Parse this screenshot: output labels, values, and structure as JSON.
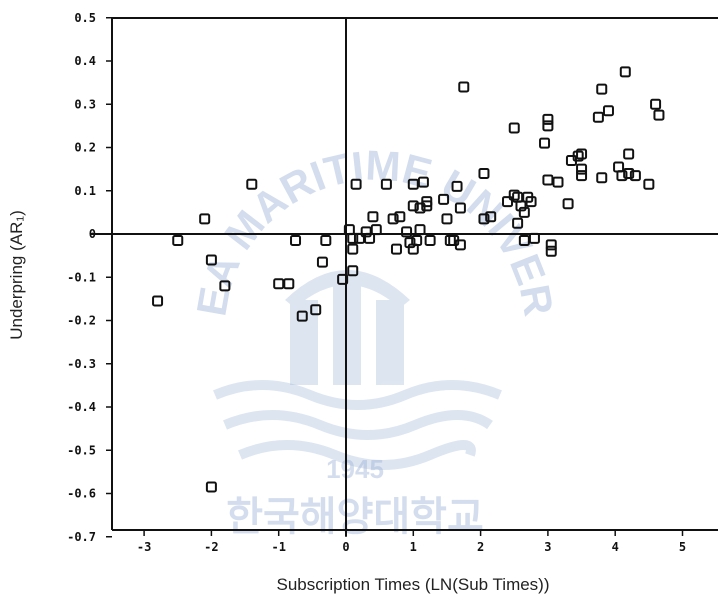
{
  "chart_data": {
    "type": "scatter",
    "xlabel": "Subscription Times (LN(Sub Times))",
    "ylabel": "Underpring (AR₁)",
    "xlim": [
      -3.5,
      5.5
    ],
    "ylim": [
      -0.7,
      0.5
    ],
    "xticks": [
      "-3",
      "-2",
      "-1",
      "0",
      "1",
      "2",
      "3",
      "4",
      "5"
    ],
    "yticks": [
      "0.5",
      "0.4",
      "0.3",
      "0.2",
      "0.1",
      "0",
      "-0.1",
      "-0.2",
      "-0.3",
      "-0.4",
      "-0.5",
      "-0.6",
      "-0.7"
    ],
    "marker": "open-square",
    "reference_lines": {
      "x": 0,
      "y": 0
    },
    "points": [
      [
        -2.8,
        -0.155
      ],
      [
        -2.5,
        -0.015
      ],
      [
        -2.1,
        0.035
      ],
      [
        -2.0,
        -0.06
      ],
      [
        -2.0,
        -0.585
      ],
      [
        -1.8,
        -0.12
      ],
      [
        -1.4,
        0.115
      ],
      [
        -1.0,
        -0.115
      ],
      [
        -0.85,
        -0.115
      ],
      [
        -0.75,
        -0.015
      ],
      [
        -0.65,
        -0.19
      ],
      [
        -0.45,
        -0.175
      ],
      [
        -0.35,
        -0.065
      ],
      [
        -0.3,
        -0.015
      ],
      [
        -0.05,
        -0.105
      ],
      [
        0.05,
        0.01
      ],
      [
        0.1,
        -0.01
      ],
      [
        0.1,
        -0.035
      ],
      [
        0.1,
        -0.085
      ],
      [
        0.15,
        0.115
      ],
      [
        0.2,
        -0.01
      ],
      [
        0.3,
        0.005
      ],
      [
        0.35,
        -0.01
      ],
      [
        0.4,
        0.04
      ],
      [
        0.45,
        0.01
      ],
      [
        0.6,
        0.115
      ],
      [
        0.7,
        0.035
      ],
      [
        0.75,
        -0.035
      ],
      [
        0.8,
        0.04
      ],
      [
        0.9,
        0.005
      ],
      [
        0.95,
        -0.02
      ],
      [
        1.0,
        0.115
      ],
      [
        1.0,
        0.065
      ],
      [
        1.0,
        -0.035
      ],
      [
        1.05,
        -0.015
      ],
      [
        1.1,
        0.06
      ],
      [
        1.1,
        0.01
      ],
      [
        1.15,
        0.12
      ],
      [
        1.2,
        0.075
      ],
      [
        1.2,
        0.065
      ],
      [
        1.25,
        -0.015
      ],
      [
        1.45,
        0.08
      ],
      [
        1.5,
        0.035
      ],
      [
        1.55,
        -0.015
      ],
      [
        1.6,
        -0.015
      ],
      [
        1.65,
        0.11
      ],
      [
        1.7,
        0.06
      ],
      [
        1.7,
        -0.025
      ],
      [
        1.75,
        0.34
      ],
      [
        2.05,
        0.14
      ],
      [
        2.05,
        0.035
      ],
      [
        2.15,
        0.04
      ],
      [
        2.4,
        0.075
      ],
      [
        2.5,
        0.245
      ],
      [
        2.5,
        0.09
      ],
      [
        2.55,
        0.085
      ],
      [
        2.55,
        0.025
      ],
      [
        2.6,
        0.065
      ],
      [
        2.65,
        -0.015
      ],
      [
        2.65,
        0.05
      ],
      [
        2.7,
        0.085
      ],
      [
        2.75,
        0.075
      ],
      [
        2.8,
        -0.01
      ],
      [
        2.95,
        0.21
      ],
      [
        3.0,
        0.265
      ],
      [
        3.0,
        0.25
      ],
      [
        3.0,
        0.125
      ],
      [
        3.05,
        -0.025
      ],
      [
        3.05,
        -0.04
      ],
      [
        3.15,
        0.12
      ],
      [
        3.3,
        0.07
      ],
      [
        3.35,
        0.17
      ],
      [
        3.45,
        0.18
      ],
      [
        3.5,
        0.185
      ],
      [
        3.5,
        0.15
      ],
      [
        3.5,
        0.135
      ],
      [
        3.75,
        0.27
      ],
      [
        3.8,
        0.335
      ],
      [
        3.8,
        0.13
      ],
      [
        3.9,
        0.285
      ],
      [
        4.05,
        0.155
      ],
      [
        4.1,
        0.135
      ],
      [
        4.15,
        0.375
      ],
      [
        4.2,
        0.185
      ],
      [
        4.2,
        0.14
      ],
      [
        4.3,
        0.135
      ],
      [
        4.5,
        0.115
      ],
      [
        4.6,
        0.3
      ],
      [
        4.65,
        0.275
      ]
    ]
  },
  "watermark": {
    "arc_text": "KOREA MARITIME UNIVERSITY",
    "year": "1945",
    "korean_text": "한국해양대학교"
  },
  "colors": {
    "axis": "#111111",
    "marker": "#111111",
    "watermark": "#9fb6d8"
  }
}
